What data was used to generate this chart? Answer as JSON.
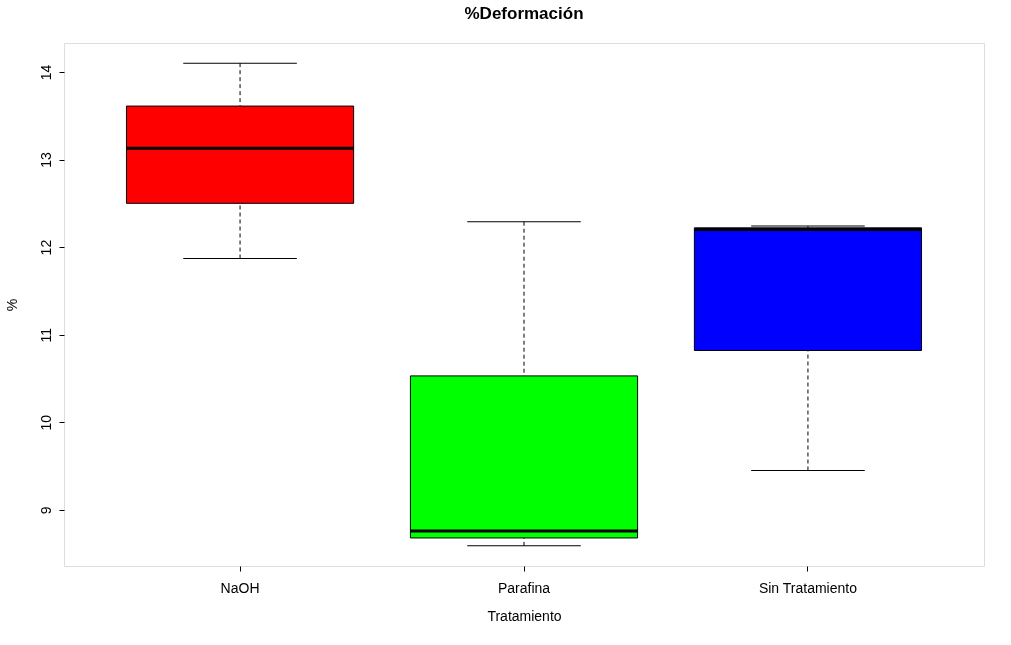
{
  "chart_data": {
    "type": "box",
    "title": "%Deformación",
    "xlabel": "Tratamiento",
    "ylabel": "%",
    "categories": [
      "NaOH",
      "Parafina",
      "Sin Tratamiento"
    ],
    "colors": [
      "#ff0000",
      "#00ff00",
      "#0000ff"
    ],
    "boxes": [
      {
        "low": 11.87,
        "q1": 12.5,
        "median": 13.13,
        "q3": 13.61,
        "high": 14.1
      },
      {
        "low": 8.59,
        "q1": 8.68,
        "median": 8.76,
        "q3": 10.53,
        "high": 12.29
      },
      {
        "low": 9.45,
        "q1": 10.82,
        "median": 12.2,
        "q3": 12.22,
        "high": 12.24
      }
    ],
    "ylim": [
      8.36,
      14.33
    ],
    "yticks": [
      9,
      10,
      11,
      12,
      13,
      14
    ],
    "grid": false,
    "legend": false
  }
}
